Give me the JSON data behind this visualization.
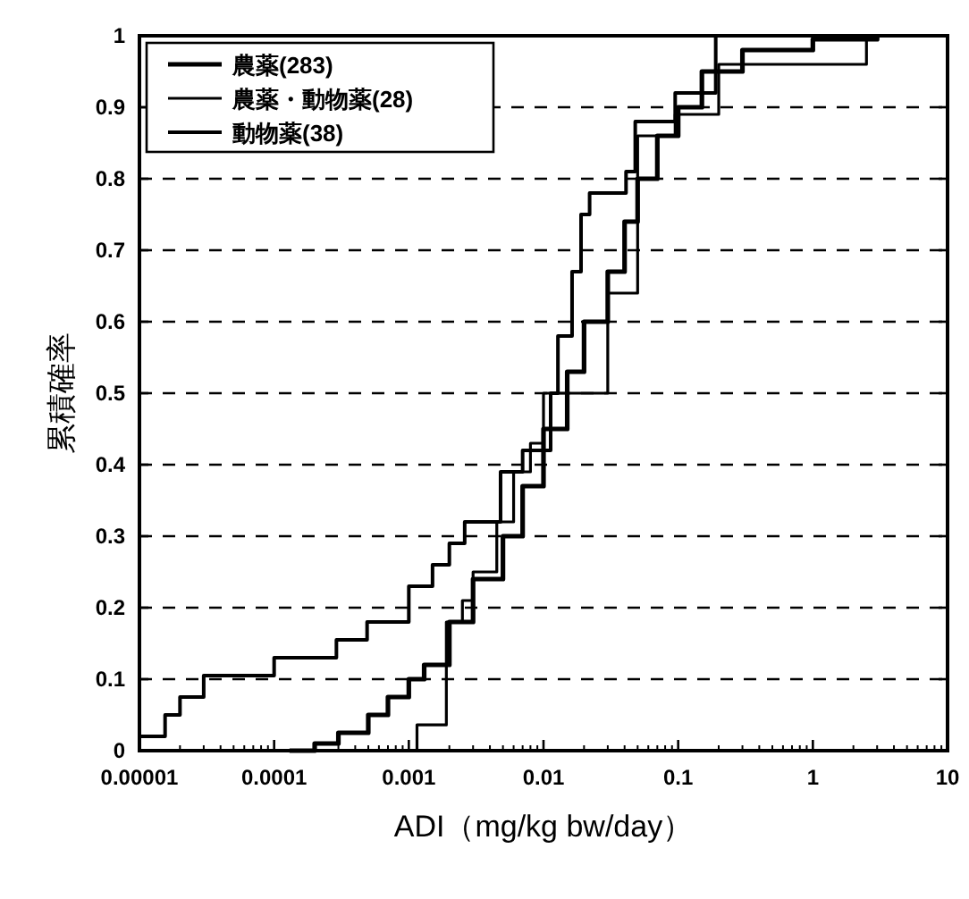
{
  "chart_data": {
    "type": "step",
    "xlabel": "ADI（mg/kg bw/day）",
    "ylabel": "累積確率",
    "log": "x",
    "grid": "y",
    "legend": "top left",
    "xlim": [
      1e-05,
      10
    ],
    "ylim": [
      0,
      1
    ],
    "xticks": [
      {
        "value": 1e-05,
        "label": "0.00001"
      },
      {
        "value": 0.0001,
        "label": "0.0001"
      },
      {
        "value": 0.001,
        "label": "0.001"
      },
      {
        "value": 0.01,
        "label": "0.01"
      },
      {
        "value": 0.1,
        "label": "0.1"
      },
      1,
      10
    ],
    "yticks": [
      0,
      0.1,
      0.2,
      0.3,
      0.4,
      0.5,
      0.6,
      0.7,
      0.8,
      0.9,
      1
    ],
    "series": [
      {
        "name": "農薬(283)",
        "color": "#000000",
        "x": [
          0.00013,
          0.0002,
          0.0003,
          0.0005,
          0.0007,
          0.001,
          0.0013,
          0.002,
          0.003,
          0.005,
          0.007,
          0.01,
          0.015,
          0.02,
          0.03,
          0.04,
          0.05,
          0.07,
          0.1,
          0.15,
          0.3,
          1,
          3
        ],
        "values": [
          0,
          0.01,
          0.025,
          0.05,
          0.075,
          0.1,
          0.12,
          0.18,
          0.24,
          0.3,
          0.37,
          0.45,
          0.53,
          0.6,
          0.67,
          0.74,
          0.8,
          0.86,
          0.9,
          0.95,
          0.98,
          0.995,
          1
        ]
      },
      {
        "name": "農薬・動物薬(28)",
        "color": "#000000",
        "x": [
          1e-05,
          0.00115,
          0.0019,
          0.0025,
          0.003,
          0.0045,
          0.006,
          0.008,
          0.01,
          0.03,
          0.05,
          0.095,
          0.2,
          2.5
        ],
        "values": [
          0,
          0.036,
          0.18,
          0.21,
          0.25,
          0.32,
          0.39,
          0.43,
          0.5,
          0.64,
          0.86,
          0.89,
          0.96,
          1
        ]
      },
      {
        "name": "動物薬(38)",
        "color": "#000000",
        "x": [
          1e-05,
          1.55e-05,
          2e-05,
          3e-05,
          0.0001,
          0.00029,
          0.00049,
          0.001,
          0.0015,
          0.002,
          0.0026,
          0.0048,
          0.007,
          0.0113,
          0.0128,
          0.0163,
          0.019,
          0.022,
          0.041,
          0.048,
          0.095,
          0.19
        ],
        "values": [
          0.02,
          0.05,
          0.075,
          0.105,
          0.13,
          0.155,
          0.18,
          0.23,
          0.26,
          0.29,
          0.32,
          0.39,
          0.42,
          0.5,
          0.58,
          0.67,
          0.75,
          0.78,
          0.81,
          0.88,
          0.92,
          1
        ]
      }
    ]
  }
}
